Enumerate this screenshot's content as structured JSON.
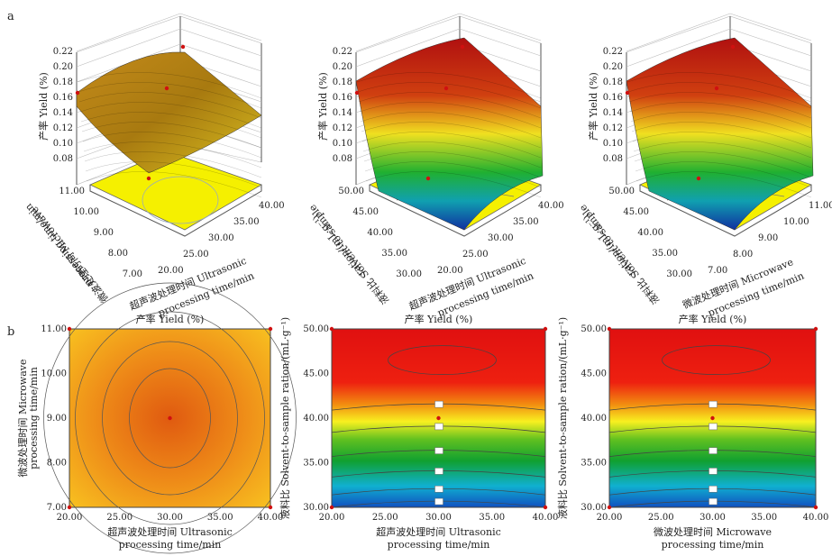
{
  "panel_labels": [
    "a",
    "b"
  ],
  "chart_data": [
    {
      "type": "surface",
      "panel": "a",
      "zlabel": "产率 Yield (%)",
      "z_ticks": [
        "0.08",
        "0.10",
        "0.12",
        "0.14",
        "0.16",
        "0.18",
        "0.20",
        "0.22"
      ],
      "xlabel_cn": "超声波处理时间 Ultrasonic",
      "xlabel_en": "processing time/min",
      "x_ticks": [
        "20.00",
        "25.00",
        "30.00",
        "35.00",
        "40.00"
      ],
      "ylabel_cn": "微波处理时间 Microwave",
      "ylabel_en": "processing time/min",
      "y_ticks": [
        "7.00",
        "8.00",
        "9.00",
        "10.00",
        "11.00"
      ],
      "surface_z_range": [
        0.16,
        0.2
      ]
    },
    {
      "type": "surface",
      "panel": "a",
      "zlabel": "产率 Yield (%)",
      "z_ticks": [
        "0.08",
        "0.10",
        "0.12",
        "0.14",
        "0.16",
        "0.18",
        "0.20",
        "0.22"
      ],
      "xlabel_cn": "超声波处理时间 Ultrasonic",
      "xlabel_en": "processing time/min",
      "x_ticks": [
        "20.00",
        "25.00",
        "30.00",
        "35.00",
        "40.00"
      ],
      "ylabel_cn": "液料比 Solvent-to-sample",
      "ylabel_en": "ration/(mL·g⁻¹)",
      "y_ticks": [
        "30.00",
        "35.00",
        "40.00",
        "45.00",
        "50.00"
      ],
      "surface_z_range": [
        0.08,
        0.2
      ]
    },
    {
      "type": "surface",
      "panel": "a",
      "zlabel": "产率 Yield (%)",
      "z_ticks": [
        "0.08",
        "0.10",
        "0.12",
        "0.14",
        "0.16",
        "0.18",
        "0.20",
        "0.22"
      ],
      "xlabel_cn": "微波处理时间 Microwave",
      "xlabel_en": "processing time/min",
      "x_ticks": [
        "7.00",
        "8.00",
        "9.00",
        "10.00",
        "11.00"
      ],
      "ylabel_cn": "液料比 Solvent-to-sample",
      "ylabel_en": "ration/(mL·g⁻¹)",
      "y_ticks": [
        "30.00",
        "35.00",
        "40.00",
        "45.00",
        "50.00"
      ],
      "surface_z_range": [
        0.08,
        0.2
      ]
    },
    {
      "type": "contour",
      "panel": "b",
      "title": "产率 Yield (%)",
      "xlabel_cn": "超声波处理时间 Ultrasonic",
      "xlabel_en": "processing time/min",
      "xlim": [
        20,
        40
      ],
      "x_ticks": [
        "20.00",
        "25.00",
        "30.00",
        "35.00",
        "40.00"
      ],
      "ylabel_cn": "微波处理时间 Microwave",
      "ylabel_en": "processing time/min",
      "ylim": [
        7,
        11
      ],
      "y_ticks": [
        "7.00",
        "8.00",
        "9.00",
        "10.00",
        "11.00"
      ],
      "center": [
        30,
        9
      ],
      "contour_levels": [
        0.18,
        0.185,
        0.19
      ]
    },
    {
      "type": "contour",
      "panel": "b",
      "title": "产率 Yield (%)",
      "xlabel_cn": "超声波处理时间 Ultrasonic",
      "xlabel_en": "processing time/min",
      "xlim": [
        20,
        40
      ],
      "x_ticks": [
        "20.00",
        "25.00",
        "30.00",
        "35.00",
        "40.00"
      ],
      "ylabel_cn": "液料比 Solvent-to-sample ration/(mL·g⁻¹)",
      "ylim": [
        30,
        50
      ],
      "y_ticks": [
        "30.00",
        "35.00",
        "40.00",
        "45.00",
        "50.00"
      ],
      "center": [
        30,
        40
      ],
      "contour_levels": [
        0.1,
        0.12,
        0.14,
        0.16,
        0.18,
        0.2
      ]
    },
    {
      "type": "contour",
      "panel": "b",
      "title": "产率 Yield (%)",
      "xlabel_cn": "微波处理时间 Microwave",
      "xlabel_en": "processing time/min",
      "xlim": [
        20,
        40
      ],
      "x_ticks": [
        "20.00",
        "25.00",
        "30.00",
        "35.00",
        "40.00"
      ],
      "ylabel_cn": "液料比 Solvent-to-sample ration/(mL·g⁻¹)",
      "ylim": [
        30,
        50
      ],
      "y_ticks": [
        "30.00",
        "35.00",
        "40.00",
        "45.00",
        "50.00"
      ],
      "center": [
        30,
        40
      ],
      "contour_levels": [
        0.1,
        0.12,
        0.14,
        0.16,
        0.18,
        0.2
      ]
    }
  ]
}
